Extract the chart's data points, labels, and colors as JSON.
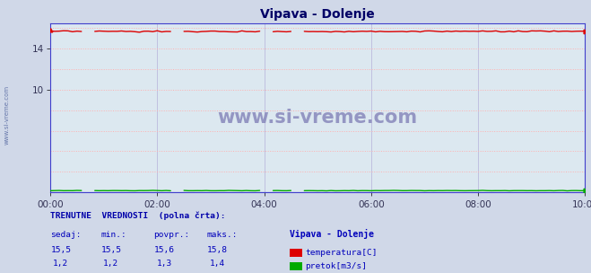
{
  "title": "Vipava - Dolenje",
  "bg_color": "#d0d8e8",
  "plot_bg_color": "#dce8f0",
  "grid_color_h": "#ffb0b0",
  "grid_color_v": "#c0c0e0",
  "temp_color": "#dd0000",
  "flow_color": "#00aa00",
  "blue_line_color": "#4040cc",
  "temp_level": 15.6,
  "flow_level": 0.18,
  "ylim_min": 0,
  "ylim_max": 16.45,
  "yticks": [
    10,
    14
  ],
  "xlim_min": 0,
  "xlim_max": 10,
  "xtick_positions": [
    0,
    2,
    4,
    6,
    8,
    10
  ],
  "xtick_labels": [
    "00:00",
    "02:00",
    "04:00",
    "06:00",
    "08:00",
    "10:00"
  ],
  "n_points": 121,
  "watermark": "www.si-vreme.com",
  "watermark_color": "#8888bb",
  "sidebar_text": "www.si-vreme.com",
  "sidebar_color": "#6677aa",
  "label_color": "#0000bb",
  "header_color": "#0000aa",
  "title_color": "#000066"
}
